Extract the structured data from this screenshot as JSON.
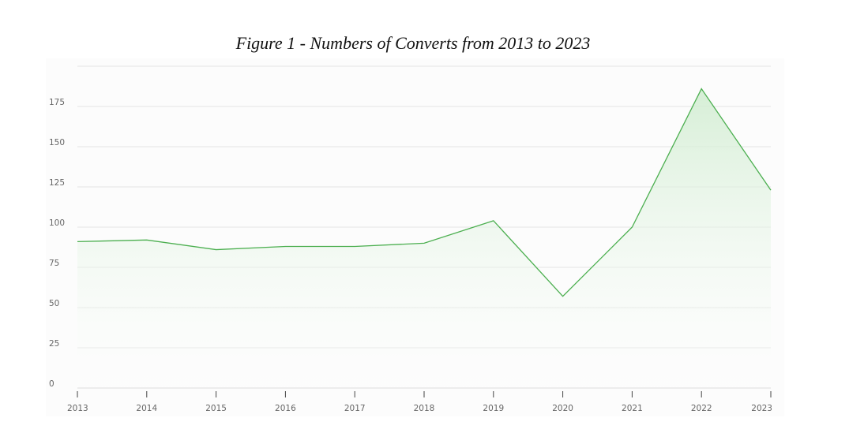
{
  "chart_data": {
    "type": "area",
    "title": "Figure 1 - Numbers of Converts from 2013 to 2023",
    "xlabel": "",
    "ylabel": "",
    "categories": [
      "2013",
      "2014",
      "2015",
      "2016",
      "2017",
      "2018",
      "2019",
      "2020",
      "2021",
      "2022",
      "2023"
    ],
    "values": [
      91,
      92,
      86,
      88,
      88,
      90,
      104,
      57,
      100,
      186,
      123
    ],
    "ylim": [
      0,
      200
    ],
    "yticks": [
      0,
      25,
      50,
      75,
      100,
      125,
      150,
      175
    ],
    "grid": true,
    "legend": "none",
    "colors": {
      "line": "#4caf50",
      "fill_top": "#cfeccf",
      "fill_bottom": "#ffffff",
      "grid": "#e3e3e3",
      "tick_text": "#666666",
      "axis": "#999999"
    }
  }
}
